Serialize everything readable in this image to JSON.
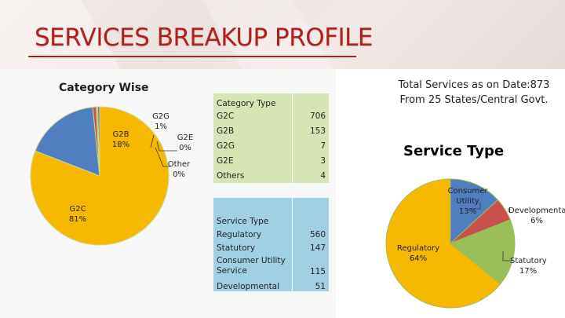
{
  "slide": {
    "title": "SERVICES BREAKUP PROFILE",
    "category_heading": "Category Wise",
    "total_line1": "Total Services as on Date:873",
    "total_line2": "From 25 States/Central Govt.",
    "service_heading": "Service Type"
  },
  "colors": {
    "title": "#b0201c",
    "orange": "#f7b900",
    "blue": "#4f7fc0",
    "red": "#c9514b",
    "green": "#9bbf58",
    "purple": "#7d62a8",
    "table1_bg": "#d7e4b6",
    "table2_bg": "#9fd1e2"
  },
  "category_table": {
    "header": "Category Type",
    "rows": [
      {
        "name": "G2C",
        "value": "706"
      },
      {
        "name": "G2B",
        "value": "153"
      },
      {
        "name": "G2G",
        "value": "7"
      },
      {
        "name": "G2E",
        "value": "3"
      },
      {
        "name": "Others",
        "value": "4"
      }
    ]
  },
  "service_table": {
    "header": "Service Type",
    "rows": [
      {
        "name": "Regulatory",
        "value": "560"
      },
      {
        "name": "Statutory",
        "value": "147"
      },
      {
        "name": "Consumer Utility Service",
        "value": "115"
      },
      {
        "name": "Developmental",
        "value": "51"
      }
    ]
  },
  "chart_data": [
    {
      "type": "pie",
      "title": "Category Wise",
      "categories": [
        "G2C",
        "G2B",
        "G2G",
        "G2E",
        "Other"
      ],
      "values": [
        706,
        153,
        7,
        3,
        4
      ],
      "labels": [
        {
          "name": "G2C",
          "pct": "81%"
        },
        {
          "name": "G2B",
          "pct": "18%"
        },
        {
          "name": "G2G",
          "pct": "1%"
        },
        {
          "name": "G2E",
          "pct": "0%"
        },
        {
          "name": "Other",
          "pct": "0%"
        }
      ],
      "colors": [
        "#f7b900",
        "#4f7fc0",
        "#c9514b",
        "#9bbf58",
        "#7d62a8"
      ]
    },
    {
      "type": "pie",
      "title": "Service Type",
      "categories": [
        "Regulatory",
        "Statutory",
        "Consumer Utility",
        "Developmental"
      ],
      "values": [
        560,
        147,
        115,
        51
      ],
      "labels": [
        {
          "name": "Regulatory",
          "pct": "64%"
        },
        {
          "name": "Statutory",
          "pct": "17%"
        },
        {
          "name": "Consumer Utility",
          "pct": "13%"
        },
        {
          "name": "Developmental",
          "pct": "6%"
        }
      ],
      "colors": [
        "#f7b900",
        "#9bbf58",
        "#4f7fc0",
        "#c9514b"
      ]
    }
  ]
}
